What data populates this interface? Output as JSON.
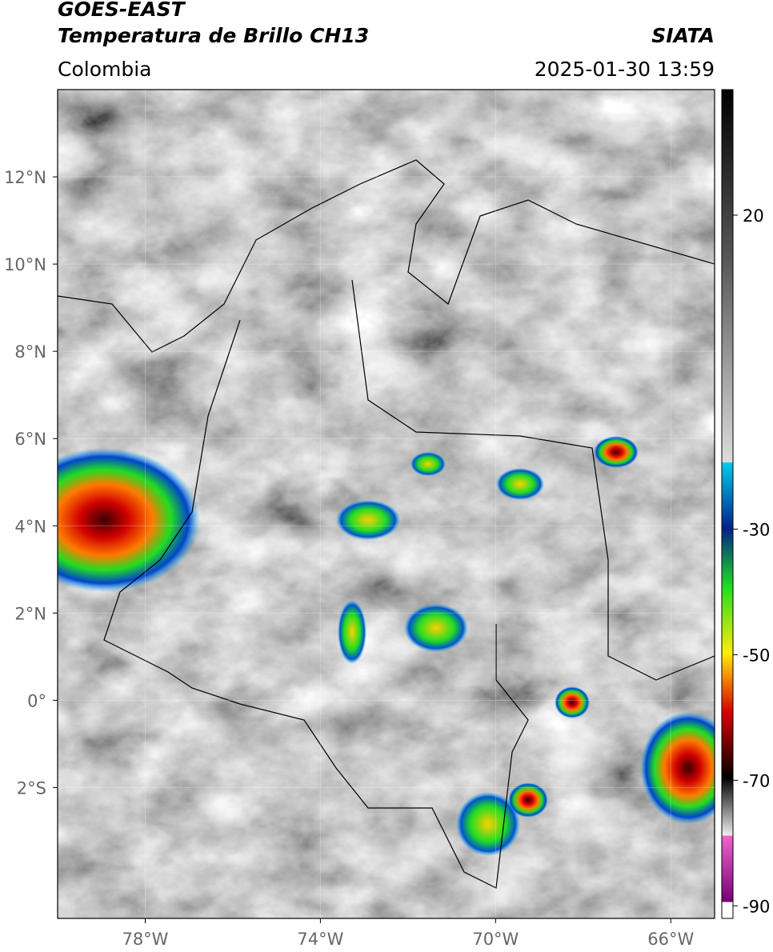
{
  "chart_data": {
    "type": "map",
    "title": "GOES-EAST",
    "subtitle": "Temperatura de Brillo CH13",
    "source": "SIATA",
    "region": "Colombia",
    "timestamp": "2025-01-30 13:59",
    "xlim": [
      -80,
      -65
    ],
    "ylim": [
      -5,
      14
    ],
    "xticks": [
      {
        "value": -78,
        "label": "78°W"
      },
      {
        "value": -74,
        "label": "74°W"
      },
      {
        "value": -70,
        "label": "70°W"
      },
      {
        "value": -66,
        "label": "66°W"
      }
    ],
    "yticks": [
      {
        "value": 12,
        "label": "12°N"
      },
      {
        "value": 10,
        "label": "10°N"
      },
      {
        "value": 8,
        "label": "8°N"
      },
      {
        "value": 6,
        "label": "6°N"
      },
      {
        "value": 4,
        "label": "4°N"
      },
      {
        "value": 2,
        "label": "2°N"
      },
      {
        "value": 0,
        "label": "0°"
      },
      {
        "value": -2,
        "label": "2°S"
      }
    ],
    "clim": [
      -92,
      40
    ],
    "cticks": [
      20,
      -30,
      -50,
      -70,
      -90
    ],
    "grid": true
  }
}
